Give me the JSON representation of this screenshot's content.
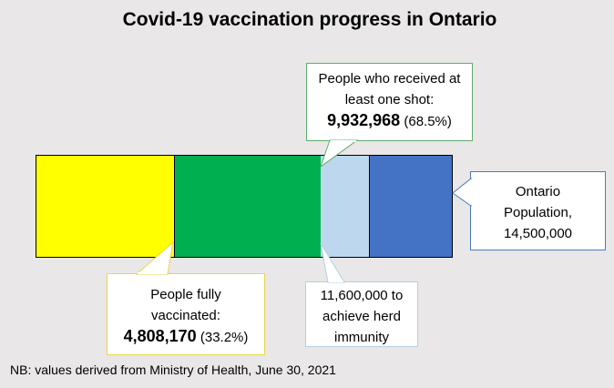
{
  "title": "Covid-19 vaccination progress in Ontario",
  "segments": [
    {
      "name": "fully-vaccinated",
      "color": "#ffff00"
    },
    {
      "name": "one-shot-only",
      "color": "#00b050"
    },
    {
      "name": "to-herd-immunity",
      "color": "#bdd7ee"
    },
    {
      "name": "remaining-population",
      "color": "#4472c4"
    }
  ],
  "callouts": {
    "one_shot": {
      "line1": "People who received at",
      "line2": "least one shot:",
      "value": "9,932,968",
      "pct": "(68.5%)"
    },
    "population": {
      "line1": "Ontario",
      "line2": "Population,",
      "line3": "14,500,000"
    },
    "fully": {
      "line1": "People fully",
      "line2": "vaccinated:",
      "value": "4,808,170",
      "pct": "(33.2%)"
    },
    "herd": {
      "line1": "11,600,000 to",
      "line2": "achieve herd",
      "line3": "immunity"
    }
  },
  "note": "NB: values derived from Ministry of Health, June 30, 2021"
}
